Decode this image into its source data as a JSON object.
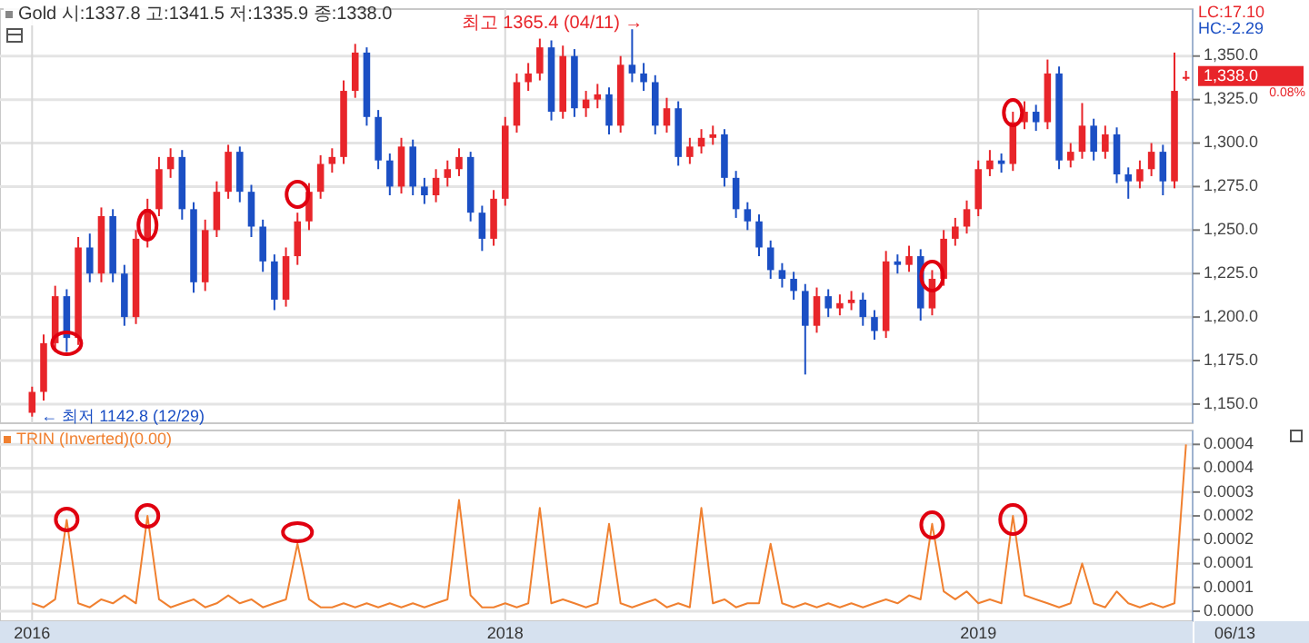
{
  "chart_data": [
    {
      "type": "candlestick",
      "title": "Gold 시:1337.8 고:1341.5 저:1335.9 종:1338.0",
      "categories": [
        "2016",
        null,
        null,
        null,
        null,
        null,
        null,
        null,
        null,
        null,
        null,
        null,
        null,
        null,
        null,
        null,
        null,
        null,
        null,
        null,
        null,
        null,
        null,
        null,
        null,
        null,
        null,
        null,
        null,
        null,
        null,
        null,
        null,
        null,
        null,
        null,
        null,
        null,
        null,
        null,
        null,
        "2018",
        null,
        null,
        null,
        null,
        null,
        null,
        null,
        null,
        null,
        null,
        null,
        null,
        null,
        null,
        null,
        null,
        null,
        null,
        null,
        null,
        null,
        null,
        null,
        null,
        null,
        null,
        null,
        null,
        null,
        null,
        null,
        null,
        null,
        null,
        null,
        null,
        null,
        null,
        null,
        null,
        "2019",
        null,
        null,
        null,
        null,
        null,
        null,
        null,
        null,
        null,
        null,
        null,
        null,
        null,
        null,
        null,
        null,
        null,
        null
      ],
      "ohlc": [
        [
          1145,
          1160,
          1142.8,
          1157
        ],
        [
          1157,
          1190,
          1152,
          1185
        ],
        [
          1185,
          1218,
          1180,
          1212
        ],
        [
          1212,
          1216,
          1180,
          1188
        ],
        [
          1188,
          1246,
          1184,
          1240
        ],
        [
          1240,
          1248,
          1220,
          1225
        ],
        [
          1225,
          1263,
          1220,
          1258
        ],
        [
          1258,
          1262,
          1220,
          1225
        ],
        [
          1225,
          1230,
          1195,
          1200
        ],
        [
          1200,
          1250,
          1196,
          1245
        ],
        [
          1245,
          1268,
          1240,
          1262
        ],
        [
          1262,
          1292,
          1258,
          1285
        ],
        [
          1285,
          1297,
          1280,
          1292
        ],
        [
          1292,
          1296,
          1256,
          1262
        ],
        [
          1262,
          1266,
          1214,
          1220
        ],
        [
          1220,
          1256,
          1215,
          1250
        ],
        [
          1250,
          1278,
          1246,
          1272
        ],
        [
          1272,
          1299,
          1268,
          1295
        ],
        [
          1295,
          1298,
          1266,
          1272
        ],
        [
          1272,
          1276,
          1246,
          1252
        ],
        [
          1252,
          1256,
          1226,
          1232
        ],
        [
          1232,
          1236,
          1204,
          1210
        ],
        [
          1210,
          1240,
          1206,
          1235
        ],
        [
          1235,
          1260,
          1230,
          1255
        ],
        [
          1255,
          1277,
          1250,
          1272
        ],
        [
          1272,
          1293,
          1268,
          1288
        ],
        [
          1288,
          1297,
          1283,
          1292
        ],
        [
          1292,
          1336,
          1288,
          1330
        ],
        [
          1330,
          1357,
          1326,
          1352
        ],
        [
          1352,
          1355,
          1310,
          1315
        ],
        [
          1315,
          1319,
          1285,
          1290
        ],
        [
          1290,
          1294,
          1270,
          1275
        ],
        [
          1275,
          1303,
          1271,
          1298
        ],
        [
          1298,
          1302,
          1270,
          1275
        ],
        [
          1275,
          1280,
          1265,
          1270
        ],
        [
          1270,
          1285,
          1266,
          1280
        ],
        [
          1280,
          1290,
          1275,
          1285
        ],
        [
          1285,
          1297,
          1281,
          1292
        ],
        [
          1292,
          1295,
          1255,
          1260
        ],
        [
          1260,
          1264,
          1238,
          1245
        ],
        [
          1245,
          1273,
          1241,
          1268
        ],
        [
          1268,
          1315,
          1264,
          1310
        ],
        [
          1310,
          1340,
          1306,
          1335
        ],
        [
          1335,
          1346,
          1330,
          1340
        ],
        [
          1340,
          1360,
          1336,
          1355
        ],
        [
          1355,
          1359,
          1313,
          1318
        ],
        [
          1318,
          1356,
          1314,
          1350
        ],
        [
          1350,
          1354,
          1315,
          1320
        ],
        [
          1320,
          1330,
          1315,
          1325
        ],
        [
          1325,
          1334,
          1320,
          1328
        ],
        [
          1328,
          1332,
          1305,
          1310
        ],
        [
          1310,
          1350,
          1306,
          1345
        ],
        [
          1345,
          1365.4,
          1335,
          1340
        ],
        [
          1340,
          1346,
          1330,
          1335
        ],
        [
          1335,
          1339,
          1305,
          1310
        ],
        [
          1310,
          1326,
          1306,
          1320
        ],
        [
          1320,
          1324,
          1287,
          1292
        ],
        [
          1292,
          1303,
          1288,
          1298
        ],
        [
          1298,
          1308,
          1294,
          1303
        ],
        [
          1303,
          1310,
          1299,
          1305
        ],
        [
          1305,
          1308,
          1275,
          1280
        ],
        [
          1280,
          1284,
          1257,
          1262
        ],
        [
          1262,
          1266,
          1250,
          1255
        ],
        [
          1255,
          1259,
          1235,
          1240
        ],
        [
          1240,
          1244,
          1222,
          1227
        ],
        [
          1227,
          1231,
          1217,
          1222
        ],
        [
          1222,
          1226,
          1210,
          1215
        ],
        [
          1215,
          1219,
          1167,
          1195
        ],
        [
          1195,
          1217,
          1191,
          1212
        ],
        [
          1212,
          1216,
          1200,
          1205
        ],
        [
          1205,
          1213,
          1201,
          1208
        ],
        [
          1208,
          1215,
          1204,
          1210
        ],
        [
          1210,
          1214,
          1195,
          1200
        ],
        [
          1200,
          1204,
          1187,
          1192
        ],
        [
          1192,
          1238,
          1188,
          1232
        ],
        [
          1232,
          1236,
          1225,
          1230
        ],
        [
          1230,
          1241,
          1226,
          1235
        ],
        [
          1235,
          1239,
          1198,
          1205
        ],
        [
          1205,
          1227,
          1201,
          1222
        ],
        [
          1222,
          1250,
          1218,
          1245
        ],
        [
          1245,
          1257,
          1241,
          1252
        ],
        [
          1252,
          1267,
          1248,
          1262
        ],
        [
          1262,
          1290,
          1258,
          1285
        ],
        [
          1285,
          1296,
          1281,
          1290
        ],
        [
          1290,
          1294,
          1283,
          1288
        ],
        [
          1288,
          1318,
          1284,
          1312
        ],
        [
          1312,
          1324,
          1308,
          1318
        ],
        [
          1318,
          1322,
          1307,
          1312
        ],
        [
          1312,
          1348,
          1308,
          1340
        ],
        [
          1340,
          1344,
          1285,
          1290
        ],
        [
          1290,
          1300,
          1286,
          1295
        ],
        [
          1295,
          1323,
          1291,
          1310
        ],
        [
          1310,
          1314,
          1290,
          1295
        ],
        [
          1295,
          1310,
          1291,
          1305
        ],
        [
          1305,
          1309,
          1277,
          1282
        ],
        [
          1282,
          1286,
          1268,
          1278
        ],
        [
          1278,
          1290,
          1274,
          1285
        ],
        [
          1285,
          1300,
          1281,
          1295
        ],
        [
          1295,
          1299,
          1270,
          1278
        ],
        [
          1278,
          1352,
          1274,
          1330
        ],
        [
          1337.8,
          1341.5,
          1335.9,
          1338.0
        ]
      ],
      "colors": [
        "#e8252a",
        "#e8252a",
        "#e8252a",
        "#1b4fc4",
        "#e8252a",
        "#1b4fc4",
        "#e8252a",
        "#1b4fc4",
        "#1b4fc4",
        "#e8252a",
        "#e8252a",
        "#e8252a",
        "#e8252a",
        "#1b4fc4",
        "#1b4fc4",
        "#e8252a",
        "#e8252a",
        "#e8252a",
        "#1b4fc4",
        "#1b4fc4",
        "#1b4fc4",
        "#1b4fc4",
        "#e8252a",
        "#e8252a",
        "#e8252a",
        "#e8252a",
        "#e8252a",
        "#e8252a",
        "#e8252a",
        "#1b4fc4",
        "#1b4fc4",
        "#1b4fc4",
        "#e8252a",
        "#1b4fc4",
        "#1b4fc4",
        "#e8252a",
        "#e8252a",
        "#e8252a",
        "#1b4fc4",
        "#1b4fc4",
        "#e8252a",
        "#e8252a",
        "#e8252a",
        "#e8252a",
        "#e8252a",
        "#1b4fc4",
        "#e8252a",
        "#1b4fc4",
        "#e8252a",
        "#e8252a",
        "#1b4fc4",
        "#e8252a",
        "#1b4fc4",
        "#1b4fc4",
        "#1b4fc4",
        "#e8252a",
        "#1b4fc4",
        "#e8252a",
        "#e8252a",
        "#e8252a",
        "#1b4fc4",
        "#1b4fc4",
        "#1b4fc4",
        "#1b4fc4",
        "#1b4fc4",
        "#1b4fc4",
        "#1b4fc4",
        "#1b4fc4",
        "#e8252a",
        "#1b4fc4",
        "#e8252a",
        "#e8252a",
        "#1b4fc4",
        "#1b4fc4",
        "#e8252a",
        "#1b4fc4",
        "#e8252a",
        "#1b4fc4",
        "#e8252a",
        "#e8252a",
        "#e8252a",
        "#e8252a",
        "#e8252a",
        "#e8252a",
        "#1b4fc4",
        "#e8252a",
        "#e8252a",
        "#1b4fc4",
        "#e8252a",
        "#1b4fc4",
        "#e8252a",
        "#e8252a",
        "#1b4fc4",
        "#e8252a",
        "#1b4fc4",
        "#1b4fc4",
        "#e8252a",
        "#e8252a",
        "#1b4fc4",
        "#e8252a",
        "#e8252a"
      ],
      "ylim": [
        1139,
        1377
      ],
      "yticks": [
        {
          "value": 1150,
          "label": "1,150.0"
        },
        {
          "value": 1175,
          "label": "1,175.0"
        },
        {
          "value": 1200,
          "label": "1,200.0"
        },
        {
          "value": 1225,
          "label": "1,225.0"
        },
        {
          "value": 1250,
          "label": "1,250.0"
        },
        {
          "value": 1275,
          "label": "1,275.0"
        },
        {
          "value": 1300,
          "label": "1,300.0"
        },
        {
          "value": 1325,
          "label": "1,325.0"
        },
        {
          "value": 1350,
          "label": "1,350.0"
        }
      ],
      "grid": true,
      "tick_labels": "y",
      "annotations": [
        "최고 1365.4 (04/11) →",
        "← 최저 1142.8 (12/29)",
        "LC:17.10",
        "HC:-2.29",
        "1,338.0",
        "0.08%"
      ]
    },
    {
      "type": "line",
      "categories": [
        "2016",
        null,
        null,
        null,
        null,
        null,
        null,
        null,
        null,
        null,
        null,
        null,
        null,
        null,
        null,
        null,
        null,
        null,
        null,
        null,
        null,
        null,
        null,
        null,
        null,
        null,
        null,
        null,
        null,
        null,
        null,
        null,
        null,
        null,
        null,
        null,
        null,
        null,
        null,
        null,
        null,
        "2018",
        null,
        null,
        null,
        null,
        null,
        null,
        null,
        null,
        null,
        null,
        null,
        null,
        null,
        null,
        null,
        null,
        null,
        null,
        null,
        null,
        null,
        null,
        null,
        null,
        null,
        null,
        null,
        null,
        null,
        null,
        null,
        null,
        null,
        null,
        null,
        null,
        null,
        null,
        null,
        null,
        "2019",
        null,
        null,
        null,
        null,
        null,
        null,
        null,
        null,
        null,
        null,
        null,
        null,
        null,
        null,
        null,
        null,
        null,
        null
      ],
      "series": [
        {
          "name": "TRIN (Inverted)(0.00)",
          "color": "#f08030",
          "values": [
            2e-05,
            1e-05,
            3e-05,
            0.00023,
            2e-05,
            1e-05,
            3e-05,
            2e-05,
            4e-05,
            2e-05,
            0.00024,
            3e-05,
            1e-05,
            2e-05,
            3e-05,
            1e-05,
            2e-05,
            4e-05,
            2e-05,
            3e-05,
            1e-05,
            2e-05,
            3e-05,
            0.00017,
            3e-05,
            1e-05,
            1e-05,
            2e-05,
            1e-05,
            2e-05,
            1e-05,
            2e-05,
            1e-05,
            2e-05,
            1e-05,
            2e-05,
            3e-05,
            0.00028,
            4e-05,
            1e-05,
            1e-05,
            2e-05,
            1e-05,
            2e-05,
            0.00026,
            2e-05,
            3e-05,
            2e-05,
            1e-05,
            2e-05,
            0.00022,
            2e-05,
            1e-05,
            2e-05,
            3e-05,
            1e-05,
            2e-05,
            1e-05,
            0.00026,
            2e-05,
            3e-05,
            1e-05,
            2e-05,
            2e-05,
            0.00017,
            2e-05,
            1e-05,
            2e-05,
            1e-05,
            2e-05,
            1e-05,
            2e-05,
            1e-05,
            2e-05,
            3e-05,
            2e-05,
            4e-05,
            3e-05,
            0.00022,
            5e-05,
            3e-05,
            5e-05,
            2e-05,
            3e-05,
            2e-05,
            0.00024,
            4e-05,
            3e-05,
            2e-05,
            1e-05,
            2e-05,
            0.00012,
            2e-05,
            1e-05,
            5e-05,
            2e-05,
            1e-05,
            2e-05,
            1e-05,
            2e-05,
            0.00042
          ]
        }
      ],
      "ylim": [
        -2.5e-05,
        0.000455
      ],
      "yticks": [
        {
          "value": 0,
          "label": "0.0000"
        },
        {
          "value": 6e-05,
          "label": "0.0001"
        },
        {
          "value": 0.00012,
          "label": "0.0001"
        },
        {
          "value": 0.00018,
          "label": "0.0002"
        },
        {
          "value": 0.00024,
          "label": "0.0002"
        },
        {
          "value": 0.0003,
          "label": "0.0003"
        },
        {
          "value": 0.00036,
          "label": "0.0004"
        },
        {
          "value": 0.00042,
          "label": "0.0004"
        }
      ],
      "grid": true,
      "legend": "top left",
      "marker": "none",
      "line_style": "solid",
      "annotations": [
        "06/13"
      ]
    }
  ]
}
